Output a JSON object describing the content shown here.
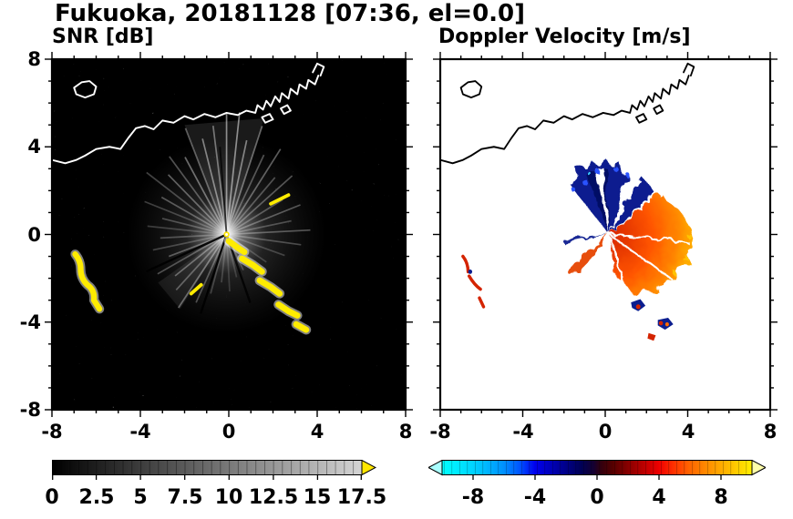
{
  "figure": {
    "title": "Fukuoka, 20181128 [07:36, el=0.0]"
  },
  "panels": {
    "snr": {
      "title": "SNR [dB]",
      "xticks": [
        "-8",
        "-4",
        "0",
        "4",
        "8"
      ],
      "yticks": [
        "8",
        "4",
        "0",
        "-4",
        "-8"
      ],
      "colorbar_ticks": [
        "0",
        "2.5",
        "5",
        "7.5",
        "10",
        "12.5",
        "15",
        "17.5"
      ]
    },
    "doppler": {
      "title": "Doppler Velocity [m/s]",
      "xticks": [
        "-8",
        "-4",
        "0",
        "4",
        "8"
      ],
      "colorbar_ticks": [
        "-8",
        "-4",
        "0",
        "4",
        "8"
      ]
    }
  },
  "chart_data": [
    {
      "type": "heatmap",
      "panel": "left",
      "title": "SNR [dB]",
      "xlim": [
        -8,
        8
      ],
      "ylim": [
        -8,
        8
      ],
      "xticks": [
        -8,
        -4,
        0,
        4,
        8
      ],
      "yticks": [
        -8,
        -4,
        0,
        4,
        8
      ],
      "grid": false,
      "colorbar": {
        "min": 0,
        "max": 17.5,
        "ticks": [
          0,
          2.5,
          5,
          7.5,
          10,
          12.5,
          15,
          17.5
        ],
        "colormap": "grayscale black to light gray, yellow over-range arrow at right end"
      },
      "features": {
        "radar_center": [
          0,
          0
        ],
        "content": "PPI radar SNR scan: bright radial beams emanate from the radar at the origin over a dark speckled-noise background; a few thin black blocked-beam rays cut through the bright fan toward the lower-left and lower-right",
        "coastline": "white coastline of the bay crossing the upper half from (-8,3.4) rising to a jagged harbor/port structure near (2 to 4, 5.5 to 7.5); small island outline near (-6.5, 6.7)",
        "strong_echoes": [
          "yellow clutter arc from about (-7,-1) to (-5.7,-3.7)",
          "jagged yellow clutter chain from about (0,-0.8) to (3.4,-4.6)",
          "short yellow streak near (2.2, 1.5)",
          "short yellow streak near (-1.6,-2.4)"
        ]
      }
    },
    {
      "type": "heatmap",
      "panel": "right",
      "title": "Doppler Velocity [m/s]",
      "xlim": [
        -8,
        8
      ],
      "ylim": [
        -8,
        8
      ],
      "xticks": [
        -8,
        -4,
        0,
        4,
        8
      ],
      "yticks": [
        -8,
        -4,
        0,
        4,
        8
      ],
      "grid": false,
      "colorbar": {
        "min": -10,
        "max": 10,
        "ticks": [
          -8,
          -4,
          0,
          4,
          8
        ],
        "colormap": "diverging cyan-blue-navy (negative) through dark center to dark red-red-orange-yellow (positive), under/over-range arrows at both ends"
      },
      "features": {
        "radar_center": [
          0,
          0
        ],
        "content": "Doppler velocity field on white background: dark blue (negative, toward radar) wedge north of the radar out to ~3 km with a narrow blue spike to the northeast; large red-to-orange (positive, away) fan east through south out to ~4 km; thin white blocked-beam gaps cross both regions",
        "coastline": "same coastline drawn in black",
        "clutter_echoes": [
          "navy/red blob near (1.5,-3.4)",
          "navy/red blob near (2.9,-4.3)",
          "small red blob near (2.2,-4.7)",
          "thin red arc near (-6.8,-1.5) and red specks near (-6.1,-3.2)"
        ]
      }
    }
  ]
}
